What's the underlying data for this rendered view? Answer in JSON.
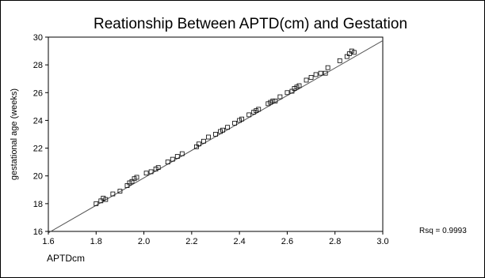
{
  "chart_data": {
    "type": "scatter",
    "title": "Reationship Between APTD(cm) and Gestation",
    "xlabel": "APTDcm",
    "ylabel": "gestational age (weeks)",
    "xlim": [
      1.6,
      3.0
    ],
    "ylim": [
      16,
      30
    ],
    "xticks": [
      "1.6",
      "1.8",
      "2.0",
      "2.2",
      "2.4",
      "2.6",
      "2.8",
      "3.0"
    ],
    "yticks": [
      "16",
      "18",
      "20",
      "22",
      "24",
      "26",
      "28",
      "30"
    ],
    "annotation": "Rsq = 0.9993",
    "marker": "open-square",
    "fit_line": {
      "x": [
        1.6,
        3.0
      ],
      "y": [
        15.9,
        29.75
      ]
    },
    "points": [
      {
        "x": 1.8,
        "y": 18.0
      },
      {
        "x": 1.82,
        "y": 18.2
      },
      {
        "x": 1.83,
        "y": 18.4
      },
      {
        "x": 1.84,
        "y": 18.3
      },
      {
        "x": 1.87,
        "y": 18.7
      },
      {
        "x": 1.9,
        "y": 18.9
      },
      {
        "x": 1.93,
        "y": 19.3
      },
      {
        "x": 1.94,
        "y": 19.5
      },
      {
        "x": 1.95,
        "y": 19.6
      },
      {
        "x": 1.96,
        "y": 19.8
      },
      {
        "x": 1.97,
        "y": 19.9
      },
      {
        "x": 2.01,
        "y": 20.2
      },
      {
        "x": 2.03,
        "y": 20.3
      },
      {
        "x": 2.05,
        "y": 20.5
      },
      {
        "x": 2.06,
        "y": 20.6
      },
      {
        "x": 2.1,
        "y": 21.0
      },
      {
        "x": 2.12,
        "y": 21.2
      },
      {
        "x": 2.14,
        "y": 21.4
      },
      {
        "x": 2.16,
        "y": 21.6
      },
      {
        "x": 2.22,
        "y": 22.1
      },
      {
        "x": 2.23,
        "y": 22.3
      },
      {
        "x": 2.25,
        "y": 22.5
      },
      {
        "x": 2.27,
        "y": 22.8
      },
      {
        "x": 2.3,
        "y": 23.0
      },
      {
        "x": 2.32,
        "y": 23.2
      },
      {
        "x": 2.33,
        "y": 23.3
      },
      {
        "x": 2.35,
        "y": 23.5
      },
      {
        "x": 2.38,
        "y": 23.8
      },
      {
        "x": 2.4,
        "y": 24.0
      },
      {
        "x": 2.41,
        "y": 24.1
      },
      {
        "x": 2.44,
        "y": 24.4
      },
      {
        "x": 2.46,
        "y": 24.6
      },
      {
        "x": 2.47,
        "y": 24.7
      },
      {
        "x": 2.48,
        "y": 24.8
      },
      {
        "x": 2.52,
        "y": 25.2
      },
      {
        "x": 2.53,
        "y": 25.3
      },
      {
        "x": 2.54,
        "y": 25.4
      },
      {
        "x": 2.55,
        "y": 25.4
      },
      {
        "x": 2.57,
        "y": 25.7
      },
      {
        "x": 2.6,
        "y": 26.0
      },
      {
        "x": 2.62,
        "y": 26.1
      },
      {
        "x": 2.63,
        "y": 26.3
      },
      {
        "x": 2.64,
        "y": 26.4
      },
      {
        "x": 2.65,
        "y": 26.5
      },
      {
        "x": 2.68,
        "y": 26.9
      },
      {
        "x": 2.7,
        "y": 27.1
      },
      {
        "x": 2.72,
        "y": 27.3
      },
      {
        "x": 2.74,
        "y": 27.4
      },
      {
        "x": 2.76,
        "y": 27.4
      },
      {
        "x": 2.77,
        "y": 27.8
      },
      {
        "x": 2.82,
        "y": 28.3
      },
      {
        "x": 2.85,
        "y": 28.6
      },
      {
        "x": 2.86,
        "y": 28.8
      },
      {
        "x": 2.87,
        "y": 29.0
      },
      {
        "x": 2.88,
        "y": 28.9
      }
    ],
    "colors": {
      "axis": "#000000",
      "line": "#555555",
      "marker": "#000000"
    }
  }
}
